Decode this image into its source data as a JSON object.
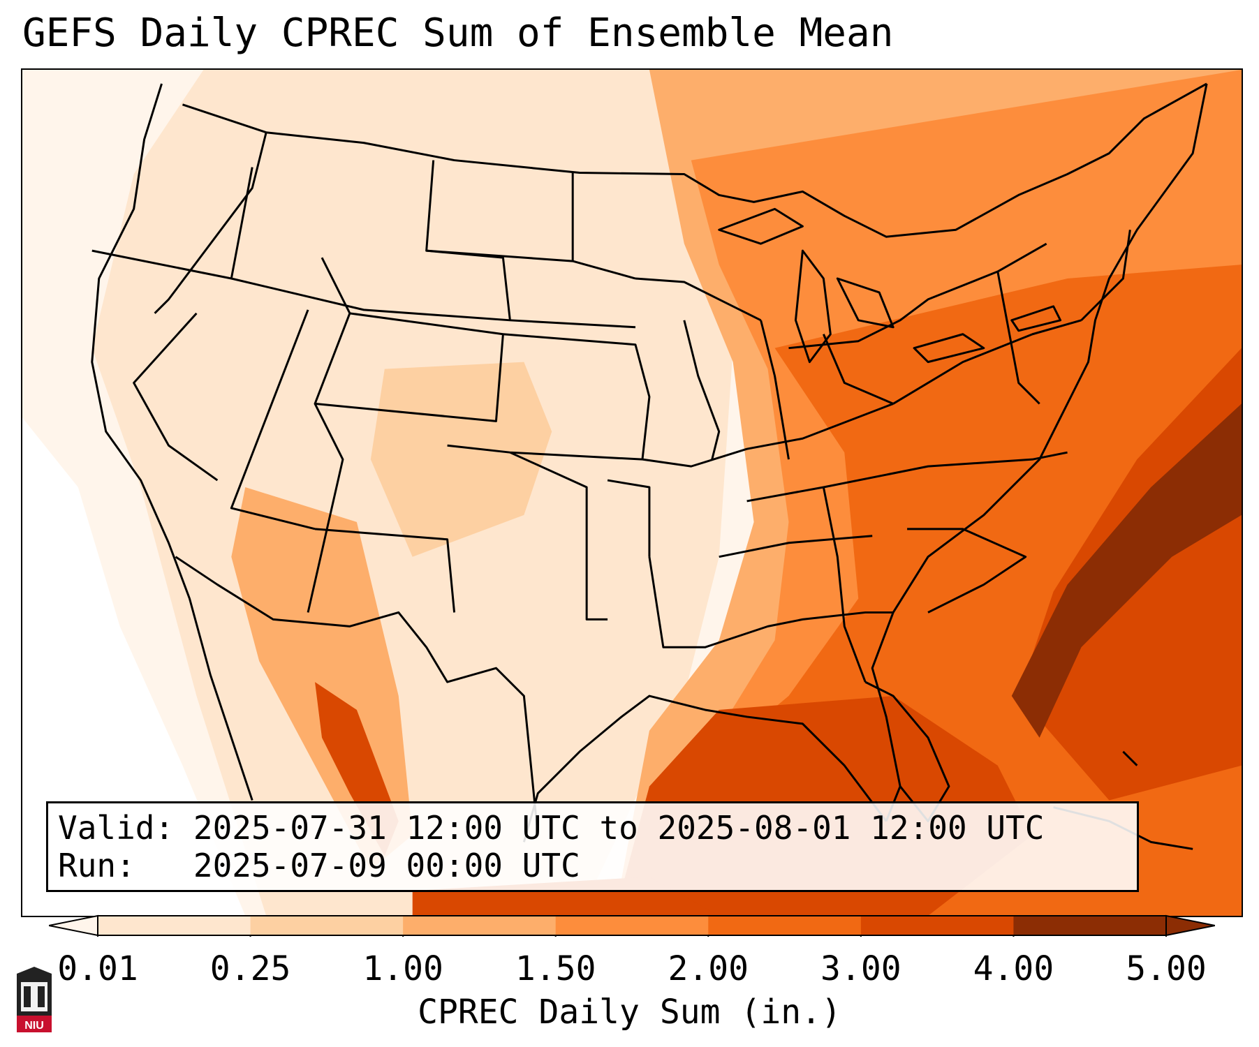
{
  "title": "GEFS Daily CPREC Sum of Ensemble Mean",
  "info": {
    "valid_label": "Valid:",
    "valid_value": "2025-07-31 12:00 UTC to 2025-08-01 12:00 UTC",
    "run_label": "Run:",
    "run_value": "2025-07-09 00:00 UTC"
  },
  "colorbar": {
    "label": "CPREC Daily Sum (in.)",
    "ticks": [
      "0.01",
      "0.25",
      "1.00",
      "1.50",
      "2.00",
      "3.00",
      "4.00",
      "5.00"
    ],
    "colors": [
      "#fff5eb",
      "#fee6ce",
      "#fdd0a2",
      "#fdae6b",
      "#fd8d3c",
      "#f16913",
      "#d94801",
      "#8c2d04"
    ],
    "extend": "both"
  },
  "logo": {
    "text": "NIU",
    "color": "#c8102e"
  }
}
